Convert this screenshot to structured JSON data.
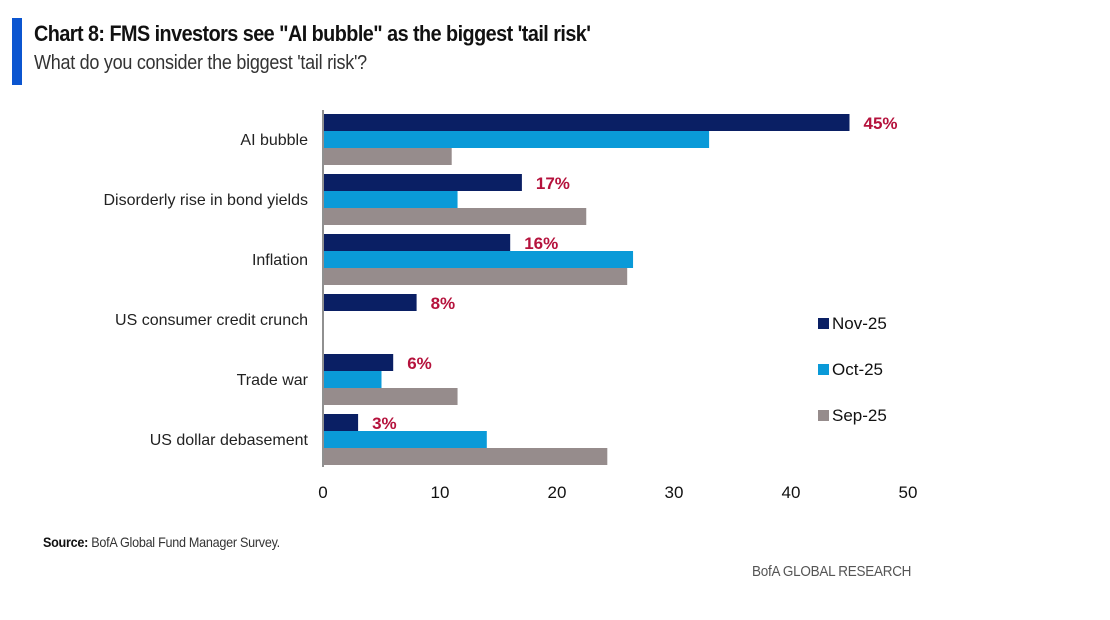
{
  "header": {
    "title": "Chart 8: FMS investors see \"AI bubble\" as the biggest 'tail risk'",
    "subtitle": "What do you consider the biggest 'tail risk'?"
  },
  "footer": {
    "source_label": "Source:",
    "source_text": " BofA Global Fund Manager Survey.",
    "brand": "BofA GLOBAL RESEARCH"
  },
  "colors": {
    "accent": "#0b55d0",
    "nov": "#0a1f64",
    "oct": "#0a9ad8",
    "sep": "#968c8c",
    "label": "#b5123c"
  },
  "chart_data": {
    "type": "bar",
    "orientation": "horizontal",
    "title": "Chart 8: FMS investors see \"AI bubble\" as the biggest 'tail risk'",
    "subtitle": "What do you consider the biggest 'tail risk'?",
    "xlabel": "",
    "ylabel": "",
    "xlim": [
      0,
      50
    ],
    "xticks": [
      0,
      10,
      20,
      30,
      40,
      50
    ],
    "grid": false,
    "legend_position": "right",
    "categories": [
      "AI bubble",
      "Disorderly rise in bond yields",
      "Inflation",
      "US consumer credit crunch",
      "Trade war",
      "US dollar debasement"
    ],
    "series": [
      {
        "name": "Nov-25",
        "color": "#0a1f64",
        "values": [
          45,
          17,
          16,
          8,
          6,
          3
        ]
      },
      {
        "name": "Oct-25",
        "color": "#0a9ad8",
        "values": [
          33,
          11.5,
          26.5,
          0,
          5,
          14
        ]
      },
      {
        "name": "Sep-25",
        "color": "#968c8c",
        "values": [
          11,
          22.5,
          26,
          0,
          11.5,
          24.3
        ]
      }
    ],
    "data_labels": [
      "45%",
      "17%",
      "16%",
      "8%",
      "6%",
      "3%"
    ]
  }
}
